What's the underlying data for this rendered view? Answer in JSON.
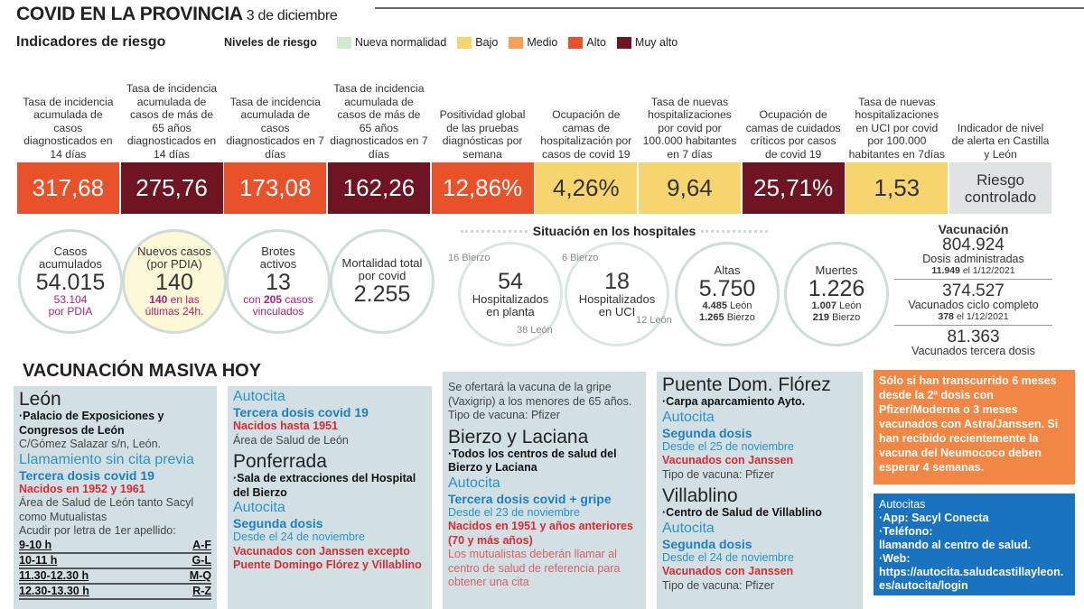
{
  "header": {
    "title": "COVID EN LA PROVINCIA",
    "date": "3 de diciembre"
  },
  "indicators_title": "Indicadores de riesgo",
  "legend": {
    "label": "Niveles de riesgo",
    "items": [
      {
        "label": "Nueva normalidad",
        "color": "#d4e8cf"
      },
      {
        "label": "Bajo",
        "color": "#f7d56e"
      },
      {
        "label": "Medio",
        "color": "#f6a05a"
      },
      {
        "label": "Alto",
        "color": "#e8512a"
      },
      {
        "label": "Muy alto",
        "color": "#6e1423"
      }
    ]
  },
  "indicators": [
    {
      "label": "Tasa de incidencia acumulada de casos diagnosticados en 14 días",
      "value": "317,68",
      "level": "Alto"
    },
    {
      "label": "Tasa de incidencia acumulada de casos de más de 65 años diagnosticados en 14 días",
      "value": "275,76",
      "level": "Muy alto"
    },
    {
      "label": "Tasa de incidencia acumulada de casos diagnosticados en 7 días",
      "value": "173,08",
      "level": "Alto"
    },
    {
      "label": "Tasa de incidencia acumulada de casos de más de 65 años diagnosticados en 7 días",
      "value": "162,26",
      "level": "Muy alto"
    },
    {
      "label": "Positividad global de las pruebas diagnósticas por semana",
      "value": "12,86%",
      "level": "Alto"
    },
    {
      "label": "Ocupación de camas de hospitalización por casos de covid 19",
      "value": "4,26%",
      "level": "Bajo"
    },
    {
      "label": "Tasa de nuevas hospitalizaciones por covid por 100.000 habitantes en 7 días",
      "value": "9,64",
      "level": "Bajo"
    },
    {
      "label": "Ocupación de camas de cuidados críticos por casos de covid 19",
      "value": "25,71%",
      "level": "Muy alto"
    },
    {
      "label": "Tasa de nuevas hospitalizaciones en UCI por covid por 100.000 habitantes en 7días",
      "value": "1,53",
      "level": "Bajo"
    },
    {
      "label": "Indicador de nivel de alerta en Castilla y León",
      "value": "Riesgo controlado",
      "level": "none"
    }
  ],
  "stats": {
    "casos": {
      "label": "Casos acumulados",
      "value": "54.015",
      "sub_num": "53.104",
      "sub": "por PDIA"
    },
    "nuevos": {
      "label": "Nuevos casos (por PDIA)",
      "value": "140",
      "sub_num": "140",
      "sub": "en las últimas 24h."
    },
    "brotes": {
      "label": "Brotes activos",
      "value": "13",
      "sub_pre": "con",
      "sub_num": "205",
      "sub": "casos vinculados"
    },
    "mortalidad": {
      "label": "Mortalidad total por covid",
      "value": "2.255"
    }
  },
  "hospitals": {
    "title": "Situación en los hospitales",
    "planta": {
      "value": "54",
      "label": "Hospitalizados en planta",
      "bierzo": "16 Bierzo",
      "leon": "38 León"
    },
    "uci": {
      "value": "18",
      "label": "Hospitalizados en UCI",
      "bierzo": "6 Bierzo",
      "leon": "12 León"
    },
    "altas": {
      "label": "Altas",
      "value": "5.750",
      "leon": "4.485",
      "leon_l": "León",
      "bierzo": "1.265",
      "bierzo_l": "Bierzo"
    },
    "muertes": {
      "label": "Muertes",
      "value": "1.226",
      "leon": "1.007",
      "leon_l": "León",
      "bierzo": "219",
      "bierzo_l": "Bierzo"
    }
  },
  "vaccination": {
    "title": "Vacunación",
    "dosis": {
      "value": "804.924",
      "label": "Dosis administradas",
      "day_num": "11.949",
      "day": "el 1/12/2021"
    },
    "completo": {
      "value": "374.527",
      "label": "Vacunados ciclo completo",
      "day_num": "378",
      "day": "el 1/12/2021"
    },
    "tercera": {
      "value": "81.363",
      "label": "Vacunados tercera dosis"
    }
  },
  "mass": {
    "title": "VACUNACIÓN MASIVA HOY",
    "panels": [
      [
        {
          "t": "León",
          "c": "city"
        },
        {
          "t": "·Palacio de Exposiciones y Congresos de León",
          "c": "b"
        },
        {
          "t": "C/Gómez Salazar s/n, León.",
          "c": "g"
        },
        {
          "t": "Llamamiento sin cita previa",
          "c": "lb"
        },
        {
          "t": "Tercera dosis covid 19",
          "c": "bb"
        },
        {
          "t": "Nacidos en 1952 y 1961",
          "c": "r"
        },
        {
          "t": "Área de Salud de León tanto Sacyl como Mutualistas",
          "c": "g"
        },
        {
          "t": "Acudir por letra de 1er apellido:",
          "c": "g"
        }
      ],
      [
        {
          "t": "Autocita",
          "c": "lb"
        },
        {
          "t": "Tercera dosis covid 19",
          "c": "bb"
        },
        {
          "t": "Nacidos hasta 1951",
          "c": "r"
        },
        {
          "t": "Área de Salud de León",
          "c": "g"
        },
        {
          "t": "Ponferrada",
          "c": "city"
        },
        {
          "t": "·Sala de extracciones del Hospital del Bierzo",
          "c": "b"
        },
        {
          "t": "Autocita",
          "c": "lb"
        },
        {
          "t": "Segunda dosis",
          "c": "bb"
        },
        {
          "t": "Desde el 24 de noviembre",
          "c": "lbs"
        },
        {
          "t": "Vacunados con Janssen excepto Puente Domingo Flórez y Villablino",
          "c": "r"
        }
      ],
      [
        {
          "t": "Se ofertará la vacuna de la gripe (Vaxigrip) a los menores de 65 años. Tipo de vacuna: Pfizer",
          "c": "g"
        },
        {
          "t": "Bierzo y Laciana",
          "c": "city"
        },
        {
          "t": "·Todos los centros de salud del Bierzo y Laciana",
          "c": "b"
        },
        {
          "t": "Autocita",
          "c": "lb"
        },
        {
          "t": "Tercera dosis covid + gripe",
          "c": "bb"
        },
        {
          "t": "Desde el 23 de noviembre",
          "c": "lbs"
        },
        {
          "t": "Nacidos en 1951 y años anteriores (70 y más años)",
          "c": "r"
        },
        {
          "t": "Los mutualistas deberán llamar al centro de salud de referencia para obtener una cita",
          "c": "lr"
        }
      ],
      [
        {
          "t": "Puente Dom. Flórez",
          "c": "city"
        },
        {
          "t": "·Carpa aparcamiento Ayto.",
          "c": "b"
        },
        {
          "t": "Autocita",
          "c": "lb"
        },
        {
          "t": "Segunda dosis",
          "c": "bb"
        },
        {
          "t": "Desde el 25 de noviembre",
          "c": "lbs"
        },
        {
          "t": "Vacunados con Janssen",
          "c": "r"
        },
        {
          "t": "Tipo de vacuna: Pfizer",
          "c": "g"
        },
        {
          "t": "Villablino",
          "c": "city"
        },
        {
          "t": "·Centro de Salud de Villablino",
          "c": "b"
        },
        {
          "t": "Autocita",
          "c": "lb"
        },
        {
          "t": "Segunda dosis",
          "c": "bb"
        },
        {
          "t": "Desde el 24 de noviembre",
          "c": "lbs"
        },
        {
          "t": "Vacunados con Janssen",
          "c": "r"
        },
        {
          "t": "Tipo de vacuna: Pfizer",
          "c": "g"
        }
      ]
    ],
    "schedule": [
      {
        "time": "9-10 h",
        "letters": "A-F"
      },
      {
        "time": "10-11 h",
        "letters": "G-L"
      },
      {
        "time": "11.30-12.30 h",
        "letters": "M-Q"
      },
      {
        "time": "12.30-13.30 h",
        "letters": "R-Z"
      }
    ],
    "note": "Sólo si han transcurrido 6 meses desde la 2ª dosis con Pfizer/Moderna o 3 meses vacunados con Astra/Janssen. Si han recibido recientemente la vacuna del Neumococo deben esperar 4 semanas.",
    "autocitas": {
      "title": "Autocitas",
      "app": "·App: Sacyl Conecta",
      "phone": "·Teléfono:",
      "phone_detail": "llamando al centro de salud.",
      "web": "·Web:",
      "url": "https://autocita.saludcastillayleon.es/autocita/login"
    }
  }
}
